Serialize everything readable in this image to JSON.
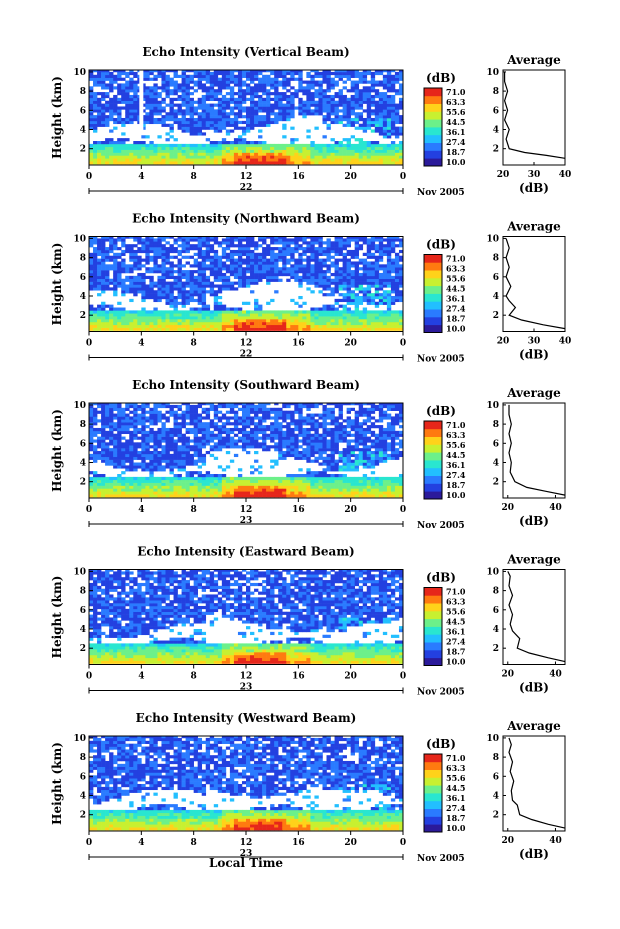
{
  "figure": {
    "xlabel": "Local Time",
    "colorbar_unit": "(dB)",
    "colorbar_ticks": [
      "71.0",
      "63.3",
      "55.6",
      "44.5",
      "36.1",
      "27.4",
      "18.7",
      "10.0"
    ],
    "colormap": [
      "#2b1a9a",
      "#2340e0",
      "#2a7bff",
      "#22bfff",
      "#29e6d0",
      "#6cf08a",
      "#c8f030",
      "#ffd21a",
      "#ff7a10",
      "#e6261a"
    ]
  },
  "chart_data": [
    {
      "type": "heatmap",
      "title": "Echo Intensity (Vertical Beam)",
      "ylabel": "Height (km)",
      "x_ticks": [
        "0",
        "4",
        "8",
        "12",
        "16",
        "20",
        "0"
      ],
      "date_left": "22",
      "date_right": "Nov 2005",
      "xlim": [
        0,
        24
      ],
      "ylim": [
        0.3,
        10.2
      ],
      "value_range_dB": [
        10.0,
        71.0
      ],
      "avg": {
        "title": "Average",
        "xlabel": "(dB)",
        "x_ticks": [
          "20",
          "30",
          "40"
        ],
        "xlim": [
          20,
          40
        ],
        "profile": [
          [
            40,
            1.0
          ],
          [
            34,
            1.3
          ],
          [
            27,
            1.6
          ],
          [
            22,
            2.0
          ],
          [
            21,
            3.0
          ],
          [
            22,
            4.0
          ],
          [
            20.5,
            5.0
          ],
          [
            21.5,
            6.0
          ],
          [
            20.5,
            7.0
          ],
          [
            21.5,
            8.0
          ],
          [
            20.5,
            9.0
          ],
          [
            20.5,
            10.0
          ]
        ]
      }
    },
    {
      "type": "heatmap",
      "title": "Echo Intensity (Northward Beam)",
      "ylabel": "Height (km)",
      "x_ticks": [
        "0",
        "4",
        "8",
        "12",
        "16",
        "20",
        "0"
      ],
      "date_left": "22",
      "date_right": "Nov 2005",
      "xlim": [
        0,
        24
      ],
      "ylim": [
        0.3,
        10.2
      ],
      "value_range_dB": [
        10.0,
        71.0
      ],
      "avg": {
        "title": "Average",
        "xlabel": "(dB)",
        "x_ticks": [
          "20",
          "30",
          "40"
        ],
        "xlim": [
          20,
          40
        ],
        "profile": [
          [
            40,
            0.6
          ],
          [
            33,
            1.0
          ],
          [
            26,
            1.5
          ],
          [
            22,
            2.0
          ],
          [
            24,
            2.8
          ],
          [
            22,
            3.5
          ],
          [
            21,
            4.0
          ],
          [
            22.5,
            5.0
          ],
          [
            21,
            6.0
          ],
          [
            22,
            7.0
          ],
          [
            21,
            8.0
          ],
          [
            22,
            9.0
          ],
          [
            21,
            10.0
          ]
        ]
      }
    },
    {
      "type": "heatmap",
      "title": "Echo Intensity (Southward Beam)",
      "ylabel": "Height (km)",
      "x_ticks": [
        "0",
        "4",
        "8",
        "12",
        "16",
        "20",
        "0"
      ],
      "date_left": "23",
      "date_right": "Nov 2005",
      "xlim": [
        0,
        24
      ],
      "ylim": [
        0.3,
        10.2
      ],
      "value_range_dB": [
        10.0,
        71.0
      ],
      "avg": {
        "title": "Average",
        "xlabel": "(dB)",
        "x_ticks": [
          "20",
          "40"
        ],
        "xlim": [
          18,
          44
        ],
        "profile": [
          [
            44,
            0.6
          ],
          [
            36,
            1.0
          ],
          [
            28,
            1.4
          ],
          [
            23,
            2.0
          ],
          [
            21,
            3.0
          ],
          [
            21.5,
            4.0
          ],
          [
            20.5,
            5.0
          ],
          [
            21.5,
            6.0
          ],
          [
            20.5,
            7.0
          ],
          [
            21.5,
            8.0
          ],
          [
            20.5,
            9.0
          ],
          [
            20.5,
            10.0
          ]
        ]
      }
    },
    {
      "type": "heatmap",
      "title": "Echo Intensity (Eastward Beam)",
      "ylabel": "Height (km)",
      "x_ticks": [
        "0",
        "4",
        "8",
        "12",
        "16",
        "20",
        "0"
      ],
      "date_left": "23",
      "date_right": "Nov 2005",
      "xlim": [
        0,
        24
      ],
      "ylim": [
        0.3,
        10.2
      ],
      "value_range_dB": [
        10.0,
        71.0
      ],
      "avg": {
        "title": "Average",
        "xlabel": "(dB)",
        "x_ticks": [
          "20",
          "40"
        ],
        "xlim": [
          18,
          44
        ],
        "profile": [
          [
            44,
            0.6
          ],
          [
            37,
            1.0
          ],
          [
            29,
            1.5
          ],
          [
            24,
            2.0
          ],
          [
            25,
            3.0
          ],
          [
            22,
            3.8
          ],
          [
            21,
            4.5
          ],
          [
            22,
            5.5
          ],
          [
            20.5,
            6.5
          ],
          [
            22,
            7.5
          ],
          [
            20.5,
            8.5
          ],
          [
            21,
            9.5
          ],
          [
            20,
            10.0
          ]
        ]
      }
    },
    {
      "type": "heatmap",
      "title": "Echo Intensity (Westward Beam)",
      "ylabel": "Height (km)",
      "x_ticks": [
        "0",
        "4",
        "8",
        "12",
        "16",
        "20",
        "0"
      ],
      "date_left": "23",
      "date_right": "Nov 2005",
      "xlim": [
        0,
        24
      ],
      "ylim": [
        0.3,
        10.2
      ],
      "value_range_dB": [
        10.0,
        71.0
      ],
      "avg": {
        "title": "Average",
        "xlabel": "(dB)",
        "x_ticks": [
          "20",
          "40"
        ],
        "xlim": [
          18,
          44
        ],
        "profile": [
          [
            44,
            0.6
          ],
          [
            37,
            1.0
          ],
          [
            30,
            1.5
          ],
          [
            25,
            2.0
          ],
          [
            24,
            3.0
          ],
          [
            22,
            3.5
          ],
          [
            21.5,
            4.5
          ],
          [
            22.5,
            5.5
          ],
          [
            21,
            6.5
          ],
          [
            22,
            7.5
          ],
          [
            20.5,
            8.5
          ],
          [
            21.5,
            9.3
          ],
          [
            20.5,
            10.0
          ]
        ]
      }
    }
  ]
}
